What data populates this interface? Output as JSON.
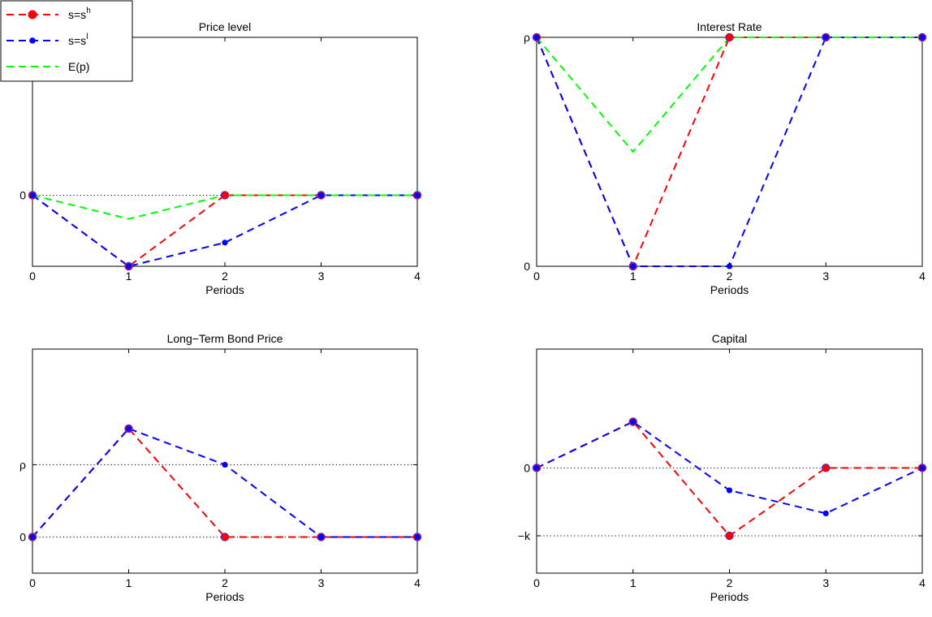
{
  "legend": {
    "placement": "top-left",
    "entries": [
      {
        "base": "s=s",
        "sup": "h",
        "color": "#ff0000",
        "style": "dashed",
        "marker": "large-dot"
      },
      {
        "base": "s=s",
        "sup": "l",
        "color": "#0000ff",
        "style": "dashed",
        "marker": "small-dot"
      },
      {
        "base": "E(p)",
        "sup": "",
        "color": "#00ff00",
        "style": "dashed",
        "marker": "none"
      }
    ]
  },
  "chart_data": [
    {
      "type": "line",
      "title": "Price level",
      "xlabel": "Periods",
      "ylabel": "",
      "x": [
        0,
        1,
        2,
        3,
        4
      ],
      "xlim": [
        0,
        4
      ],
      "ylim": [
        -0.45,
        1.0
      ],
      "yticks": [
        {
          "value": 0,
          "label": "0"
        },
        {
          "value": 1.0,
          "label": "ρ"
        }
      ],
      "reference_lines": [
        0,
        1.0
      ],
      "series": [
        {
          "key": "h",
          "color": "#ff0000",
          "values": [
            0,
            -0.45,
            0,
            0,
            0
          ]
        },
        {
          "key": "l",
          "color": "#0000ff",
          "values": [
            0,
            -0.45,
            -0.3,
            0,
            0
          ]
        },
        {
          "key": "e",
          "color": "#00ff00",
          "values": [
            0,
            -0.15,
            0,
            0,
            0
          ]
        }
      ]
    },
    {
      "type": "line",
      "title": "Interest Rate",
      "xlabel": "Periods",
      "ylabel": "",
      "x": [
        0,
        1,
        2,
        3,
        4
      ],
      "xlim": [
        0,
        4
      ],
      "ylim": [
        0,
        1.0
      ],
      "yticks": [
        {
          "value": 0,
          "label": "0"
        },
        {
          "value": 1.0,
          "label": "ρ"
        }
      ],
      "reference_lines": [
        1.0
      ],
      "series": [
        {
          "key": "h",
          "color": "#ff0000",
          "values": [
            1.0,
            0,
            1.0,
            1.0,
            1.0
          ]
        },
        {
          "key": "l",
          "color": "#0000ff",
          "values": [
            1.0,
            0,
            0,
            1.0,
            1.0
          ]
        },
        {
          "key": "e",
          "color": "#00ff00",
          "values": [
            1.0,
            0.5,
            1.0,
            1.0,
            1.0
          ]
        }
      ]
    },
    {
      "type": "line",
      "title": "Long−Term Bond Price",
      "xlabel": "Periods",
      "ylabel": "",
      "x": [
        0,
        1,
        2,
        3,
        4
      ],
      "xlim": [
        0,
        4
      ],
      "ylim": [
        -0.5,
        2.6
      ],
      "yticks": [
        {
          "value": 0,
          "label": "0"
        },
        {
          "value": 1.0,
          "label": "ρ"
        }
      ],
      "reference_lines": [
        0,
        1.0
      ],
      "series": [
        {
          "key": "h",
          "color": "#ff0000",
          "values": [
            0,
            1.5,
            0,
            0,
            0
          ]
        },
        {
          "key": "l",
          "color": "#0000ff",
          "values": [
            0,
            1.5,
            1.0,
            0,
            0
          ]
        }
      ]
    },
    {
      "type": "line",
      "title": "Capital",
      "xlabel": "Periods",
      "ylabel": "",
      "x": [
        0,
        1,
        2,
        3,
        4
      ],
      "xlim": [
        0,
        4
      ],
      "ylim": [
        -1.55,
        1.75
      ],
      "yticks": [
        {
          "value": 0,
          "label": "0"
        },
        {
          "value": -1.0,
          "label": "−k"
        }
      ],
      "reference_lines": [
        0,
        -1.0
      ],
      "series": [
        {
          "key": "h",
          "color": "#ff0000",
          "values": [
            0,
            0.68,
            -1.0,
            0,
            0
          ]
        },
        {
          "key": "l",
          "color": "#0000ff",
          "values": [
            0,
            0.68,
            -0.33,
            -0.67,
            0
          ]
        }
      ]
    }
  ]
}
